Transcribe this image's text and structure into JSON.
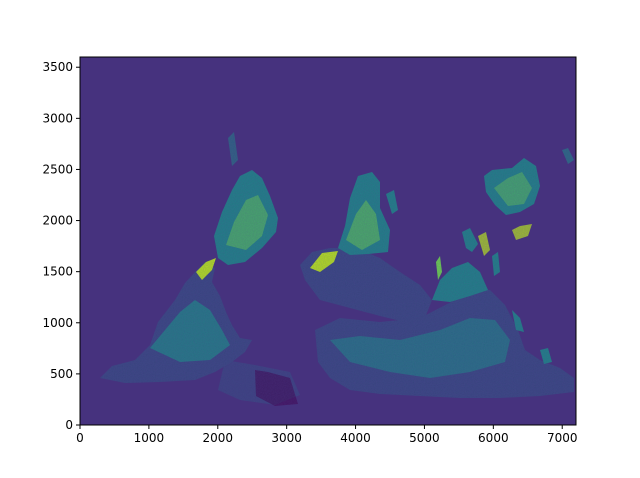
{
  "chart_data": {
    "type": "heatmap",
    "title": "",
    "xlabel": "",
    "ylabel": "",
    "xlim": [
      0,
      7200
    ],
    "ylim": [
      0,
      3600
    ],
    "x_ticks": [
      0,
      1000,
      2000,
      3000,
      4000,
      5000,
      6000,
      7000
    ],
    "y_ticks": [
      0,
      500,
      1000,
      1500,
      2000,
      2500,
      3000,
      3500
    ],
    "x_tick_labels": [
      "0",
      "1000",
      "2000",
      "3000",
      "4000",
      "5000",
      "6000",
      "7000"
    ],
    "y_tick_labels": [
      "0",
      "500",
      "1000",
      "1500",
      "2000",
      "2500",
      "3000",
      "3500"
    ],
    "grid": false,
    "colormap": "viridis",
    "colors": {
      "background_value": "#46327e",
      "low": "#3e4a89",
      "mid": "#26828e",
      "high": "#6ece58",
      "peak": "#b5de2b",
      "dark_purple": "#440154"
    }
  }
}
